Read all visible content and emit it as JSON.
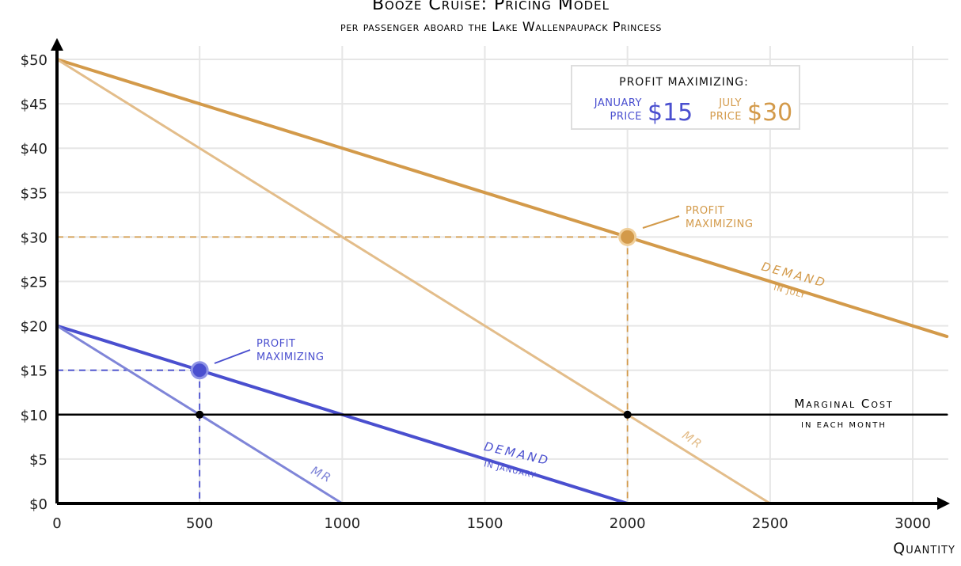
{
  "chart_data": {
    "type": "line",
    "title": "Booze Cruise: Pricing Model",
    "subtitle": "per passenger aboard the Lake Wallenpaupack Princess",
    "xlabel": "Quantity",
    "ylabel": "",
    "xlim": [
      0,
      3120
    ],
    "ylim": [
      0,
      50
    ],
    "x_ticks": [
      0,
      500,
      1000,
      1500,
      2000,
      2500,
      3000
    ],
    "y_ticks": [
      0,
      5,
      10,
      15,
      20,
      25,
      30,
      35,
      40,
      45,
      50
    ],
    "y_tick_prefix": "$",
    "grid": true,
    "colors": {
      "january": "#4a4fcf",
      "july": "#d39a4a",
      "mr_january": "#7f85d8",
      "mr_july": "#e3bd8a",
      "cost": "#000000",
      "grid": "#e6e6e6"
    },
    "series": [
      {
        "key": "demand_july",
        "label_main": "Demand",
        "label_sub": "in July",
        "x": [
          0,
          3120
        ],
        "y": [
          50,
          18.8
        ]
      },
      {
        "key": "mr_july",
        "label_main": "MR",
        "x": [
          0,
          2500
        ],
        "y": [
          50,
          0
        ]
      },
      {
        "key": "demand_january",
        "label_main": "Demand",
        "label_sub": "in January",
        "x": [
          0,
          2000
        ],
        "y": [
          20,
          0
        ]
      },
      {
        "key": "mr_january",
        "label_main": "MR",
        "x": [
          0,
          1000
        ],
        "y": [
          20,
          0
        ]
      },
      {
        "key": "marginal_cost",
        "label_main": "Marginal Cost",
        "label_sub": "in each month",
        "x": [
          0,
          3120
        ],
        "y": [
          10,
          10
        ]
      }
    ],
    "points": [
      {
        "key": "july_optimum",
        "x": 2000,
        "y": 30,
        "label_lines": [
          "PROFIT",
          "MAXIMIZING"
        ]
      },
      {
        "key": "january_optimum",
        "x": 500,
        "y": 15,
        "label_lines": [
          "PROFIT",
          "MAXIMIZING"
        ]
      },
      {
        "key": "july_mr_mc",
        "x": 2000,
        "y": 10
      },
      {
        "key": "january_mr_mc",
        "x": 500,
        "y": 10
      }
    ],
    "legend_box": {
      "heading": "PROFIT MAXIMIZING:",
      "january_label_lines": [
        "JANUARY",
        "PRICE"
      ],
      "january_value": "$15",
      "july_label_lines": [
        "JULY",
        "PRICE"
      ],
      "july_value": "$30",
      "placement": "top-right"
    }
  }
}
